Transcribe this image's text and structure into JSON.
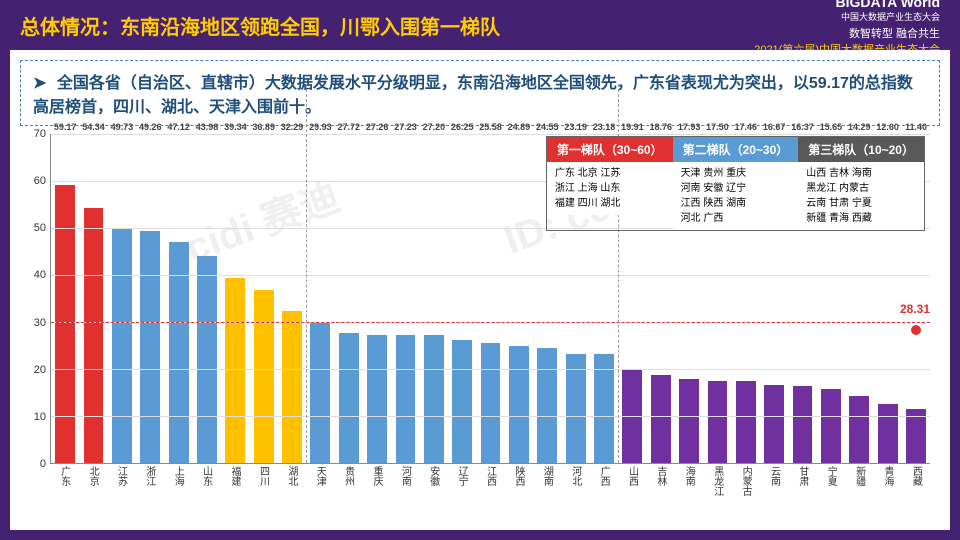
{
  "header": {
    "title": "总体情况：东南沿海地区领跑全国，川鄂入围第一梯队",
    "logo_main": "BIGDATA World",
    "logo_sub": "中国大数据产业生态大会",
    "slogan": "数智转型 融合共生",
    "event": "2021(第六届)中国大数据产业生态大会"
  },
  "description": "全国各省（自治区、直辖市）大数据发展水平分级明显，东南沿海地区全国领先，广东省表现尤为突出，以59.17的总指数高居榜首，四川、湖北、天津入围前十。",
  "chart": {
    "type": "bar",
    "ylim": [
      0,
      70
    ],
    "ytick_step": 10,
    "background_color": "#ffffff",
    "grid_color": "#dddddd",
    "threshold1": 30,
    "avg_value": 28.31,
    "avg_label": "28.31",
    "tier_breaks": [
      9,
      20
    ],
    "bars": [
      {
        "name": "广东",
        "value": 59.17,
        "color": "#e03030"
      },
      {
        "name": "北京",
        "value": 54.34,
        "color": "#e03030"
      },
      {
        "name": "江苏",
        "value": 49.73,
        "color": "#5b9bd5"
      },
      {
        "name": "浙江",
        "value": 49.26,
        "color": "#5b9bd5"
      },
      {
        "name": "上海",
        "value": 47.12,
        "color": "#5b9bd5"
      },
      {
        "name": "山东",
        "value": 43.98,
        "color": "#5b9bd5"
      },
      {
        "name": "福建",
        "value": 39.34,
        "color": "#ffc000"
      },
      {
        "name": "四川",
        "value": 36.89,
        "color": "#ffc000"
      },
      {
        "name": "湖北",
        "value": 32.29,
        "color": "#ffc000"
      },
      {
        "name": "天津",
        "value": 29.93,
        "color": "#5b9bd5"
      },
      {
        "name": "贵州",
        "value": 27.72,
        "color": "#5b9bd5"
      },
      {
        "name": "重庆",
        "value": 27.26,
        "color": "#5b9bd5"
      },
      {
        "name": "河南",
        "value": 27.23,
        "color": "#5b9bd5"
      },
      {
        "name": "安徽",
        "value": 27.2,
        "color": "#5b9bd5"
      },
      {
        "name": "辽宁",
        "value": 26.25,
        "color": "#5b9bd5"
      },
      {
        "name": "江西",
        "value": 25.58,
        "color": "#5b9bd5"
      },
      {
        "name": "陕西",
        "value": 24.89,
        "color": "#5b9bd5"
      },
      {
        "name": "湖南",
        "value": 24.55,
        "color": "#5b9bd5"
      },
      {
        "name": "河北",
        "value": 23.19,
        "color": "#5b9bd5"
      },
      {
        "name": "广西",
        "value": 23.18,
        "color": "#5b9bd5"
      },
      {
        "name": "山西",
        "value": 19.91,
        "color": "#7030a0"
      },
      {
        "name": "吉林",
        "value": 18.76,
        "color": "#7030a0"
      },
      {
        "name": "海南",
        "value": 17.93,
        "color": "#7030a0"
      },
      {
        "name": "黑龙江",
        "value": 17.5,
        "color": "#7030a0"
      },
      {
        "name": "内蒙古",
        "value": 17.46,
        "color": "#7030a0"
      },
      {
        "name": "云南",
        "value": 16.67,
        "color": "#7030a0"
      },
      {
        "name": "甘肃",
        "value": 16.37,
        "color": "#7030a0"
      },
      {
        "name": "宁夏",
        "value": 15.65,
        "color": "#7030a0"
      },
      {
        "name": "新疆",
        "value": 14.29,
        "color": "#7030a0"
      },
      {
        "name": "青海",
        "value": 12.6,
        "color": "#7030a0"
      },
      {
        "name": "西藏",
        "value": 11.4,
        "color": "#7030a0"
      }
    ]
  },
  "legend": {
    "tiers": [
      {
        "head": "第一梯队（30~60）",
        "color": "#e03030",
        "rows": [
          "广东 北京 江苏",
          "浙江 上海 山东",
          "福建 四川 湖北"
        ]
      },
      {
        "head": "第二梯队（20~30）",
        "color": "#5b9bd5",
        "rows": [
          "天津 贵州 重庆",
          "河南 安徽 辽宁",
          "江西 陕西 湖南",
          "河北 广西"
        ]
      },
      {
        "head": "第三梯队（10~20）",
        "color": "#595959",
        "rows": [
          "山西 吉林 海南",
          "黑龙江 内蒙古",
          "云南 甘肃 宁夏",
          "新疆 青海 西藏"
        ]
      }
    ]
  },
  "watermarks": [
    "ccidi 赛迪",
    "ID: ccid_20"
  ]
}
